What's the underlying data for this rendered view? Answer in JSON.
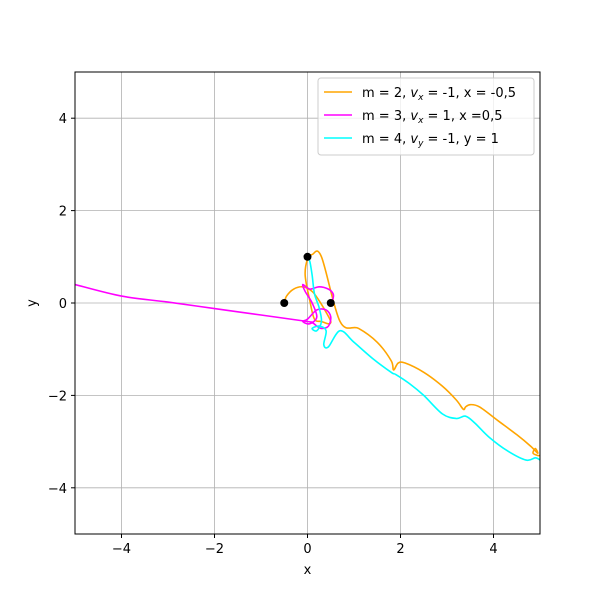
{
  "chart_data": {
    "type": "line",
    "title": "",
    "xlabel": "x",
    "ylabel": "y",
    "xlim": [
      -5,
      5
    ],
    "ylim": [
      -5,
      5
    ],
    "xticks": [
      -4,
      -2,
      0,
      2,
      4
    ],
    "yticks": [
      -4,
      -2,
      0,
      2,
      4
    ],
    "tick_labels_x": [
      "−4",
      "−2",
      "0",
      "2",
      "4"
    ],
    "tick_labels_y": [
      "−4",
      "−2",
      "0",
      "2",
      "4"
    ],
    "grid": true,
    "legend_position": "top-right",
    "series": [
      {
        "name": "m = 2, v_x = -1, x = -0,5",
        "legend_parts": [
          "m = 2, ",
          "v",
          "x",
          " = -1, x = -0,5"
        ],
        "color": "#ffa500",
        "x": [
          -0.5,
          -0.45,
          -0.3,
          -0.1,
          0.1,
          0.25,
          0.4,
          0.5,
          0.45,
          0.3,
          0.15,
          0.05,
          -0.05,
          0.0,
          0.1,
          0.3,
          0.7,
          1.1,
          1.5,
          1.8,
          1.85,
          1.95,
          2.1,
          2.5,
          2.9,
          3.2,
          3.35,
          3.4,
          3.5,
          3.7,
          4.1,
          4.5,
          4.8,
          4.95,
          4.9,
          4.85,
          4.95,
          5.0
        ],
        "y": [
          0.0,
          0.15,
          0.3,
          0.35,
          0.25,
          0.05,
          -0.2,
          -0.4,
          -0.45,
          -0.4,
          -0.35,
          0.05,
          0.6,
          0.95,
          1.05,
          1.0,
          -0.4,
          -0.55,
          -0.85,
          -1.25,
          -1.45,
          -1.3,
          -1.3,
          -1.5,
          -1.8,
          -2.1,
          -2.3,
          -2.25,
          -2.2,
          -2.25,
          -2.55,
          -2.85,
          -3.1,
          -3.25,
          -3.15,
          -3.25,
          -3.3,
          -3.3
        ]
      },
      {
        "name": "m = 3, v_x = 1, x =0,5",
        "legend_parts": [
          "m = 3, ",
          "v",
          "x",
          " = 1, x =0,5"
        ],
        "color": "#ff00ff",
        "x": [
          0.5,
          0.55,
          0.55,
          0.45,
          0.25,
          0.05,
          -0.1,
          -0.05,
          0.1,
          0.2,
          0.05,
          -0.1,
          0.0,
          0.2,
          0.4,
          0.5,
          0.45,
          0.3,
          0.2,
          0.1,
          0.0,
          -1.0,
          -2.0,
          -3.0,
          -4.0,
          -5.0
        ],
        "y": [
          0.0,
          0.1,
          0.2,
          0.3,
          0.35,
          0.3,
          0.4,
          0.25,
          0.0,
          -0.3,
          -0.45,
          -0.4,
          -0.35,
          -0.15,
          -0.15,
          -0.3,
          -0.5,
          -0.55,
          -0.5,
          -0.42,
          -0.4,
          -0.26,
          -0.12,
          0.02,
          0.15,
          0.4
        ]
      },
      {
        "name": "m = 4, v_y = -1, y = 1",
        "legend_parts": [
          "m = 4, ",
          "v",
          "y",
          " = -1, y = 1"
        ],
        "color": "#00ffff",
        "x": [
          0.0,
          0.05,
          0.1,
          0.15,
          0.25,
          0.3,
          0.2,
          0.1,
          0.25,
          0.4,
          0.35,
          0.45,
          0.7,
          1.0,
          1.4,
          1.8,
          1.9,
          2.2,
          2.5,
          2.9,
          3.2,
          3.4,
          3.6,
          3.9,
          4.3,
          4.7,
          4.9,
          5.0
        ],
        "y": [
          1.0,
          0.9,
          0.6,
          0.2,
          -0.1,
          -0.4,
          -0.6,
          -0.55,
          -0.5,
          -0.6,
          -0.9,
          -0.95,
          -0.6,
          -0.85,
          -1.2,
          -1.5,
          -1.55,
          -1.75,
          -2.0,
          -2.4,
          -2.5,
          -2.45,
          -2.6,
          -2.9,
          -3.2,
          -3.4,
          -3.35,
          -3.4
        ]
      }
    ],
    "markers": [
      {
        "x": -0.5,
        "y": 0.0,
        "color": "#000000"
      },
      {
        "x": 0.5,
        "y": 0.0,
        "color": "#000000"
      },
      {
        "x": 0.0,
        "y": 1.0,
        "color": "#000000"
      }
    ]
  }
}
